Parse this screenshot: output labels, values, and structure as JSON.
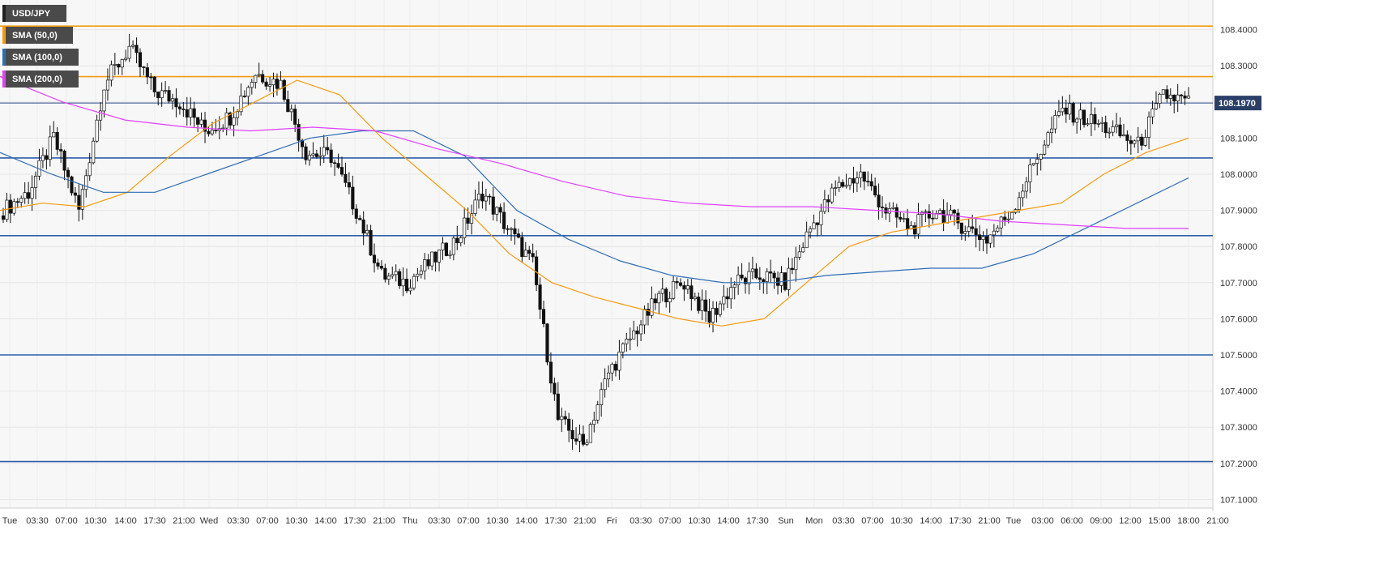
{
  "chart_data": {
    "type": "candlestick",
    "symbol": "USD/JPY",
    "ylim": [
      107.1,
      108.5
    ],
    "y_ticks": [
      "107.1000",
      "107.2000",
      "107.3000",
      "107.4000",
      "107.5000",
      "107.6000",
      "107.7000",
      "107.8000",
      "107.9000",
      "108.0000",
      "108.1000",
      "108.2000",
      "108.3000",
      "108.4000"
    ],
    "x_ticks": [
      "Tue",
      "03:30",
      "07:00",
      "10:30",
      "14:00",
      "17:30",
      "21:00",
      "Wed",
      "03:30",
      "07:00",
      "10:30",
      "14:00",
      "17:30",
      "21:00",
      "Thu",
      "03:30",
      "07:00",
      "10:30",
      "14:00",
      "17:30",
      "21:00",
      "Fri",
      "03:30",
      "07:00",
      "10:30",
      "14:00",
      "17:30",
      "Sun",
      "Mon",
      "03:30",
      "07:00",
      "10:30",
      "14:00",
      "17:30",
      "21:00",
      "Tue",
      "03:00",
      "06:00",
      "09:00",
      "12:00",
      "15:00",
      "18:00",
      "21:00"
    ],
    "current_price": "108.1970",
    "grid": true,
    "legend": [
      {
        "label": "USD/JPY",
        "color": "#222222"
      },
      {
        "label": "SMA (50,0)",
        "color": "#f39c12"
      },
      {
        "label": "SMA (100,0)",
        "color": "#2f6db5"
      },
      {
        "label": "SMA (200,0)",
        "color": "#e040fb"
      }
    ],
    "levels": [
      {
        "value": 108.41,
        "color": "#f39c12"
      },
      {
        "value": 108.27,
        "color": "#f39c12"
      },
      {
        "value": 108.197,
        "color": "#2c4a8a"
      },
      {
        "value": 108.045,
        "color": "#2f5ea8"
      },
      {
        "value": 107.83,
        "color": "#2f5ea8"
      },
      {
        "value": 107.5,
        "color": "#2f5ea8"
      },
      {
        "value": 107.205,
        "color": "#2f5ea8"
      }
    ],
    "anchors": [
      107.9,
      107.95,
      108.1,
      107.9,
      108.25,
      108.35,
      108.23,
      108.2,
      108.12,
      108.16,
      108.28,
      108.25,
      108.06,
      108.05,
      107.9,
      107.72,
      107.7,
      107.76,
      107.82,
      107.95,
      107.85,
      107.75,
      107.32,
      107.25,
      107.45,
      107.56,
      107.66,
      107.7,
      107.6,
      107.7,
      107.72,
      107.7,
      107.85,
      107.96,
      108.0,
      107.9,
      107.85,
      107.9,
      107.86,
      107.82,
      107.9,
      108.05,
      108.18,
      108.15,
      108.12,
      108.08,
      108.22,
      108.2
    ],
    "series": [
      {
        "name": "SMA (50,0)",
        "color": "#f39c12",
        "values": [
          107.9,
          107.92,
          107.91,
          107.95,
          108.05,
          108.14,
          108.2,
          108.26,
          108.22,
          108.1,
          108.0,
          107.9,
          107.78,
          107.7,
          107.66,
          107.63,
          107.6,
          107.58,
          107.6,
          107.7,
          107.8,
          107.84,
          107.86,
          107.88,
          107.9,
          107.92,
          108.0,
          108.06,
          108.1
        ]
      },
      {
        "name": "SMA (100,0)",
        "color": "#2f6db5",
        "values": [
          108.06,
          108.0,
          107.95,
          107.95,
          108.0,
          108.05,
          108.1,
          108.12,
          108.12,
          108.05,
          107.9,
          107.82,
          107.76,
          107.72,
          107.7,
          107.7,
          107.72,
          107.73,
          107.74,
          107.74,
          107.78,
          107.85,
          107.92,
          107.99
        ]
      },
      {
        "name": "SMA (200,0)",
        "color": "#e040fb",
        "values": [
          108.27,
          108.2,
          108.15,
          108.13,
          108.12,
          108.13,
          108.12,
          108.07,
          108.03,
          107.98,
          107.94,
          107.92,
          107.91,
          107.91,
          107.9,
          107.89,
          107.87,
          107.86,
          107.85,
          107.85
        ]
      }
    ]
  }
}
